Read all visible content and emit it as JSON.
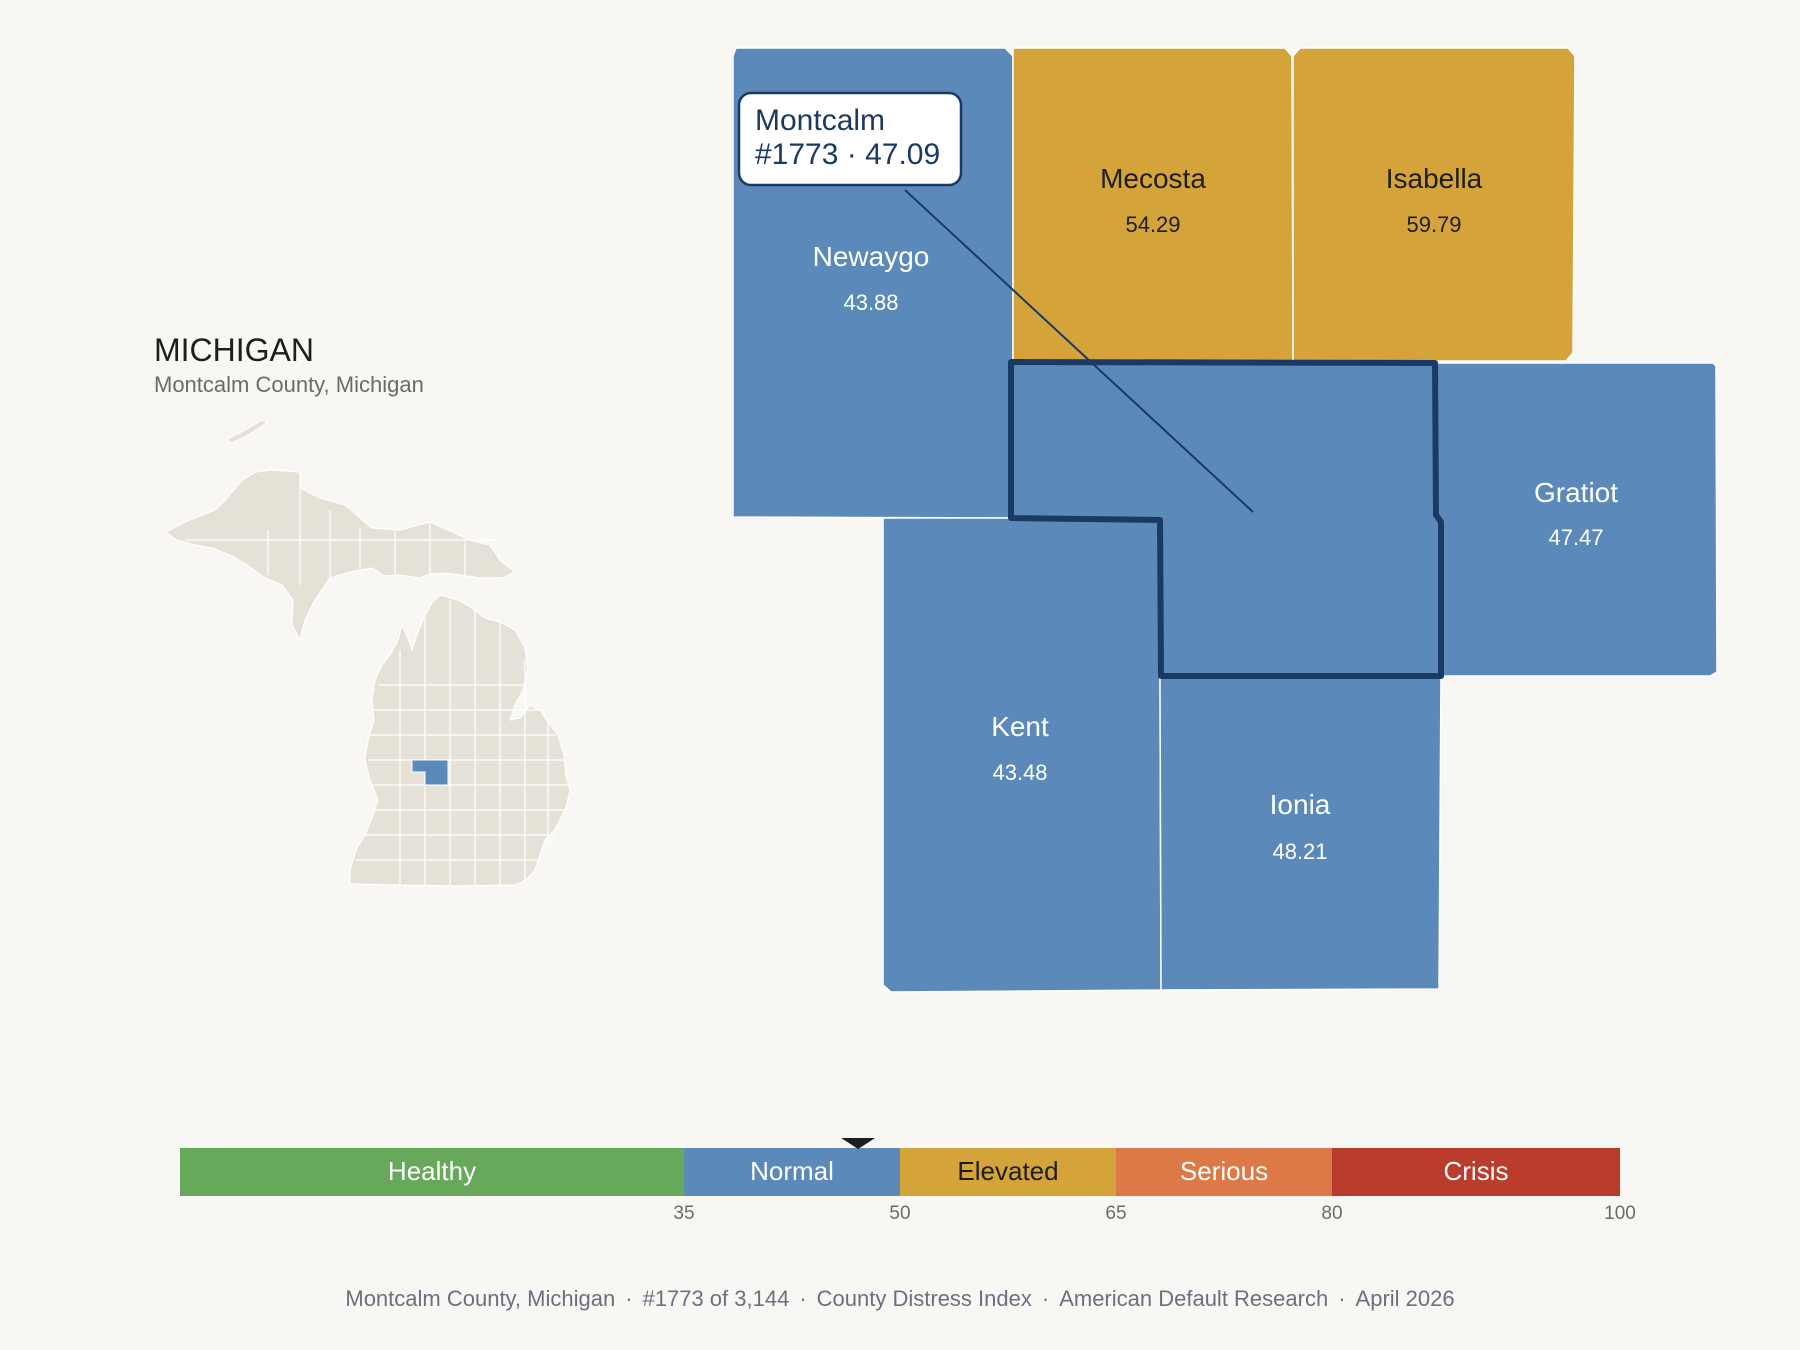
{
  "state": {
    "title": "MICHIGAN",
    "subtitle": "Montcalm County, Michigan",
    "mini_map": {
      "shape_color": "#e6e1d7",
      "highlight_color": "#5b89b9"
    }
  },
  "focus_county": {
    "name": "Montcalm",
    "callout_line1": "Montcalm",
    "callout_line2": "#1773 · 47.09",
    "rank": 1773,
    "score": 47.09,
    "category": "Normal"
  },
  "counties": [
    {
      "id": "newaygo",
      "name": "Newaygo",
      "score": "43.88",
      "category": "Normal"
    },
    {
      "id": "mecosta",
      "name": "Mecosta",
      "score": "54.29",
      "category": "Elevated"
    },
    {
      "id": "isabella",
      "name": "Isabella",
      "score": "59.79",
      "category": "Elevated"
    },
    {
      "id": "gratiot",
      "name": "Gratiot",
      "score": "47.47",
      "category": "Normal"
    },
    {
      "id": "kent",
      "name": "Kent",
      "score": "43.48",
      "category": "Normal"
    },
    {
      "id": "ionia",
      "name": "Ionia",
      "score": "48.21",
      "category": "Normal"
    },
    {
      "id": "montcalm",
      "name": "",
      "score": "",
      "category": "Normal"
    }
  ],
  "legend": {
    "bands": [
      {
        "label": "Healthy",
        "from": 0,
        "to": 35,
        "color": "#67a85a",
        "text_color": "#ffffff"
      },
      {
        "label": "Normal",
        "from": 35,
        "to": 50,
        "color": "#5b89b9",
        "text_color": "#ffffff"
      },
      {
        "label": "Elevated",
        "from": 50,
        "to": 65,
        "color": "#d4a43a",
        "text_color": "#1e1e1e"
      },
      {
        "label": "Serious",
        "from": 65,
        "to": 80,
        "color": "#dd7847",
        "text_color": "#ffffff"
      },
      {
        "label": "Crisis",
        "from": 80,
        "to": 100,
        "color": "#b93c2c",
        "text_color": "#ffffff"
      }
    ],
    "ticks": [
      "35",
      "50",
      "65",
      "80",
      "100"
    ],
    "marker_value": 47.09
  },
  "footer": {
    "place": "Montcalm County, Michigan",
    "rank": "#1773 of 3,144",
    "index": "County Distress Index",
    "source": "American Default Research",
    "date": "April 2026"
  }
}
